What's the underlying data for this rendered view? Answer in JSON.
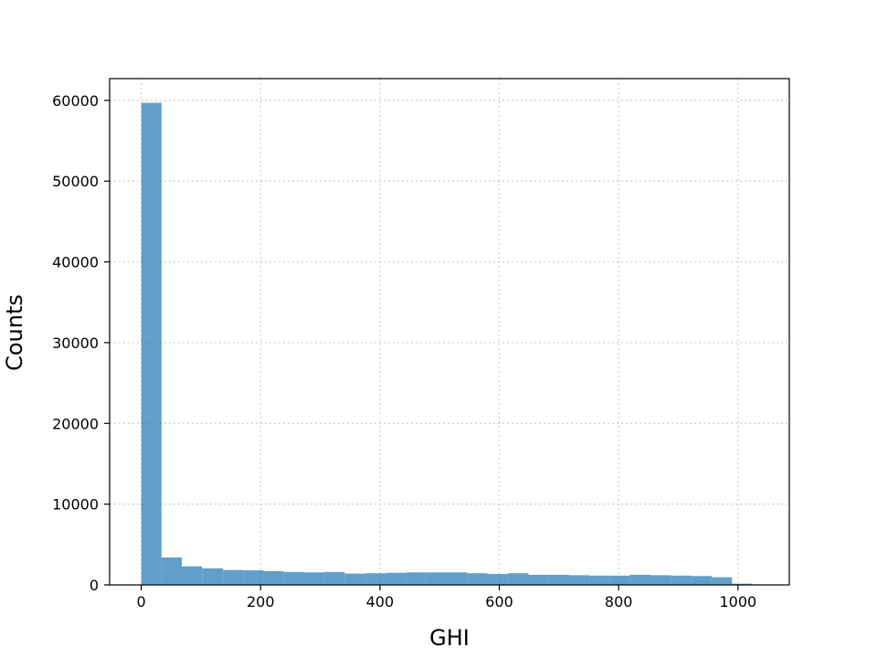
{
  "chart_data": {
    "type": "bar",
    "title": "",
    "xlabel": "GHI",
    "ylabel": "Counts",
    "xlim": [
      -53,
      1086
    ],
    "ylim": [
      0,
      62700
    ],
    "grid": true,
    "bar_color": "#1f77b4",
    "bar_opacity": 0.7,
    "bin_width": 34,
    "bins": [
      {
        "x0": 0,
        "x1": 34,
        "count": 59700
      },
      {
        "x0": 34,
        "x1": 68,
        "count": 3400
      },
      {
        "x0": 68,
        "x1": 102,
        "count": 2300
      },
      {
        "x0": 102,
        "x1": 137,
        "count": 2050
      },
      {
        "x0": 137,
        "x1": 171,
        "count": 1850
      },
      {
        "x0": 171,
        "x1": 205,
        "count": 1800
      },
      {
        "x0": 205,
        "x1": 239,
        "count": 1700
      },
      {
        "x0": 239,
        "x1": 273,
        "count": 1600
      },
      {
        "x0": 273,
        "x1": 307,
        "count": 1550
      },
      {
        "x0": 307,
        "x1": 341,
        "count": 1600
      },
      {
        "x0": 341,
        "x1": 376,
        "count": 1400
      },
      {
        "x0": 376,
        "x1": 410,
        "count": 1450
      },
      {
        "x0": 410,
        "x1": 444,
        "count": 1500
      },
      {
        "x0": 444,
        "x1": 478,
        "count": 1550
      },
      {
        "x0": 478,
        "x1": 512,
        "count": 1550
      },
      {
        "x0": 512,
        "x1": 546,
        "count": 1550
      },
      {
        "x0": 546,
        "x1": 580,
        "count": 1450
      },
      {
        "x0": 580,
        "x1": 615,
        "count": 1350
      },
      {
        "x0": 615,
        "x1": 649,
        "count": 1450
      },
      {
        "x0": 649,
        "x1": 683,
        "count": 1250
      },
      {
        "x0": 683,
        "x1": 717,
        "count": 1250
      },
      {
        "x0": 717,
        "x1": 751,
        "count": 1200
      },
      {
        "x0": 751,
        "x1": 785,
        "count": 1150
      },
      {
        "x0": 785,
        "x1": 819,
        "count": 1150
      },
      {
        "x0": 819,
        "x1": 854,
        "count": 1250
      },
      {
        "x0": 854,
        "x1": 888,
        "count": 1200
      },
      {
        "x0": 888,
        "x1": 922,
        "count": 1150
      },
      {
        "x0": 922,
        "x1": 956,
        "count": 1100
      },
      {
        "x0": 956,
        "x1": 990,
        "count": 950
      },
      {
        "x0": 990,
        "x1": 1024,
        "count": 150
      }
    ],
    "x_ticks": [
      0,
      200,
      400,
      600,
      800,
      1000
    ],
    "y_ticks": [
      0,
      10000,
      20000,
      30000,
      40000,
      50000,
      60000
    ]
  }
}
